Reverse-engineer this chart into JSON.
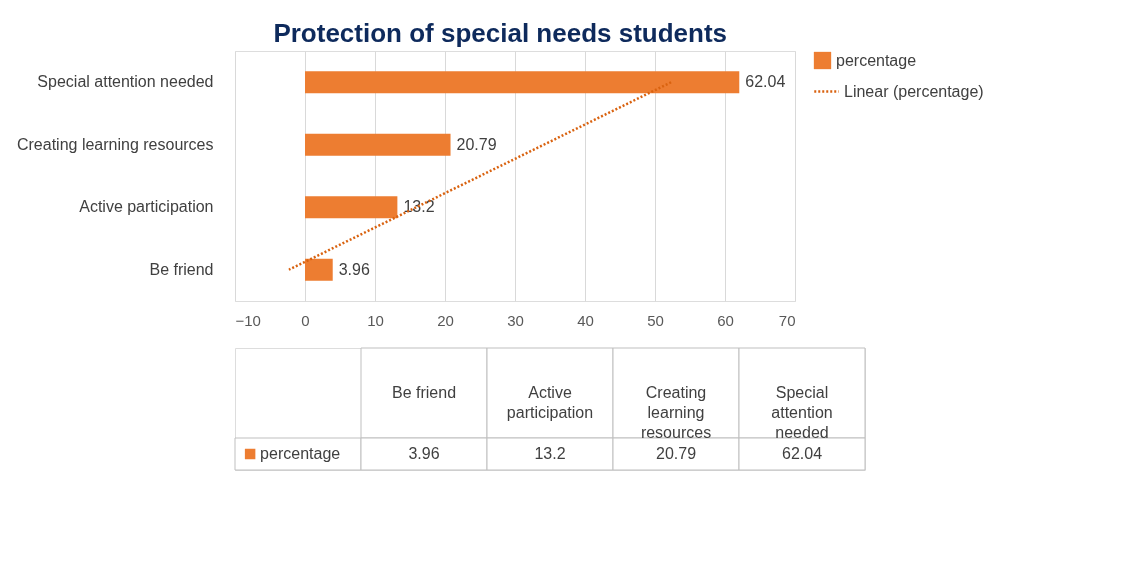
{
  "chart_data": {
    "type": "bar",
    "orientation": "horizontal",
    "title": "Protection of special needs students",
    "categories": [
      "Special attention needed",
      "Creating learning resources",
      "Active participation",
      "Be friend"
    ],
    "series": [
      {
        "name": "percentage",
        "color": "#ed7d31",
        "values": [
          62.04,
          20.79,
          13.2,
          3.96
        ],
        "value_labels": [
          "62.04",
          "20.79",
          "13.2",
          "3.96"
        ]
      },
      {
        "name": "Linear (percentage)",
        "type": "line",
        "line_style": "dotted",
        "color": "#d9620f",
        "values": [
          52.3,
          34.1,
          15.9,
          -2.3
        ]
      }
    ],
    "xlim": [
      -10,
      70
    ],
    "xticks": [
      -10,
      0,
      10,
      20,
      30,
      40,
      50,
      60,
      70
    ],
    "grid": "x",
    "legend": "right"
  }
}
